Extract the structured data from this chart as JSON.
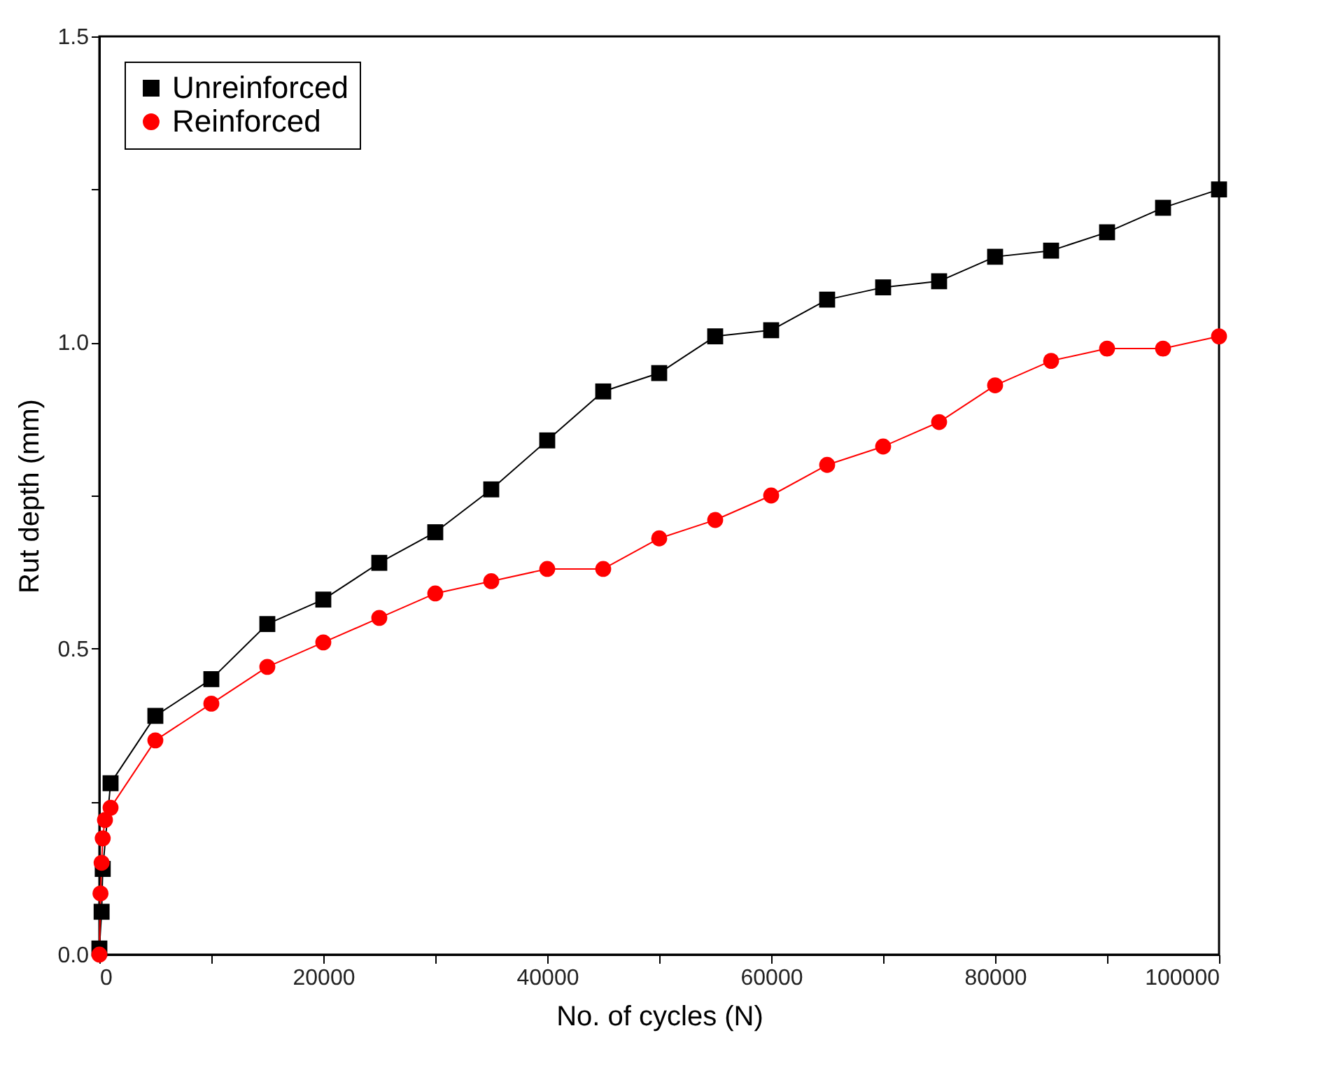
{
  "chart_data": {
    "type": "line",
    "xlabel": "No. of cycles (N)",
    "ylabel": "Rut depth (mm)",
    "xlim": [
      0,
      100000
    ],
    "ylim": [
      0,
      1.5
    ],
    "xticks": [
      0,
      {
        "value": 10000,
        "label": null
      },
      20000,
      {
        "value": 30000,
        "label": null
      },
      40000,
      {
        "value": 50000,
        "label": null
      },
      60000,
      {
        "value": 70000,
        "label": null
      },
      80000,
      {
        "value": 90000,
        "label": null
      },
      100000
    ],
    "yticks": [
      {
        "value": 0,
        "label": "0.0"
      },
      {
        "value": 0.25,
        "label": null
      },
      {
        "value": 0.5,
        "label": "0.5"
      },
      {
        "value": 0.75,
        "label": null
      },
      {
        "value": 1,
        "label": "1.0"
      },
      {
        "value": 1.25,
        "label": null
      },
      {
        "value": 1.5,
        "label": "1.5"
      }
    ],
    "grid": false,
    "legend": "top left",
    "line_style": "solid",
    "series": [
      {
        "name": "Unreinforced",
        "color": "#000000",
        "marker": "square",
        "x": [
          0,
          200,
          300,
          1000,
          5000,
          10000,
          15000,
          20000,
          25000,
          30000,
          35000,
          40000,
          45000,
          50000,
          55000,
          60000,
          65000,
          70000,
          75000,
          80000,
          85000,
          90000,
          95000,
          100000
        ],
        "values": [
          0.01,
          0.07,
          0.14,
          0.28,
          0.39,
          0.45,
          0.54,
          0.58,
          0.64,
          0.69,
          0.76,
          0.84,
          0.92,
          0.95,
          1.01,
          1.02,
          1.07,
          1.09,
          1.1,
          1.14,
          1.15,
          1.18,
          1.22,
          1.25
        ]
      },
      {
        "name": "Reinforced",
        "color": "#ff0000",
        "marker": "circle",
        "x": [
          0,
          100,
          200,
          300,
          500,
          1000,
          5000,
          10000,
          15000,
          20000,
          25000,
          30000,
          35000,
          40000,
          45000,
          50000,
          55000,
          60000,
          65000,
          70000,
          75000,
          80000,
          85000,
          90000,
          95000,
          100000
        ],
        "values": [
          0.0,
          0.1,
          0.15,
          0.19,
          0.22,
          0.24,
          0.35,
          0.41,
          0.47,
          0.51,
          0.55,
          0.59,
          0.61,
          0.63,
          0.63,
          0.68,
          0.71,
          0.75,
          0.8,
          0.83,
          0.87,
          0.93,
          0.97,
          0.99,
          0.99,
          1.01
        ]
      }
    ]
  }
}
